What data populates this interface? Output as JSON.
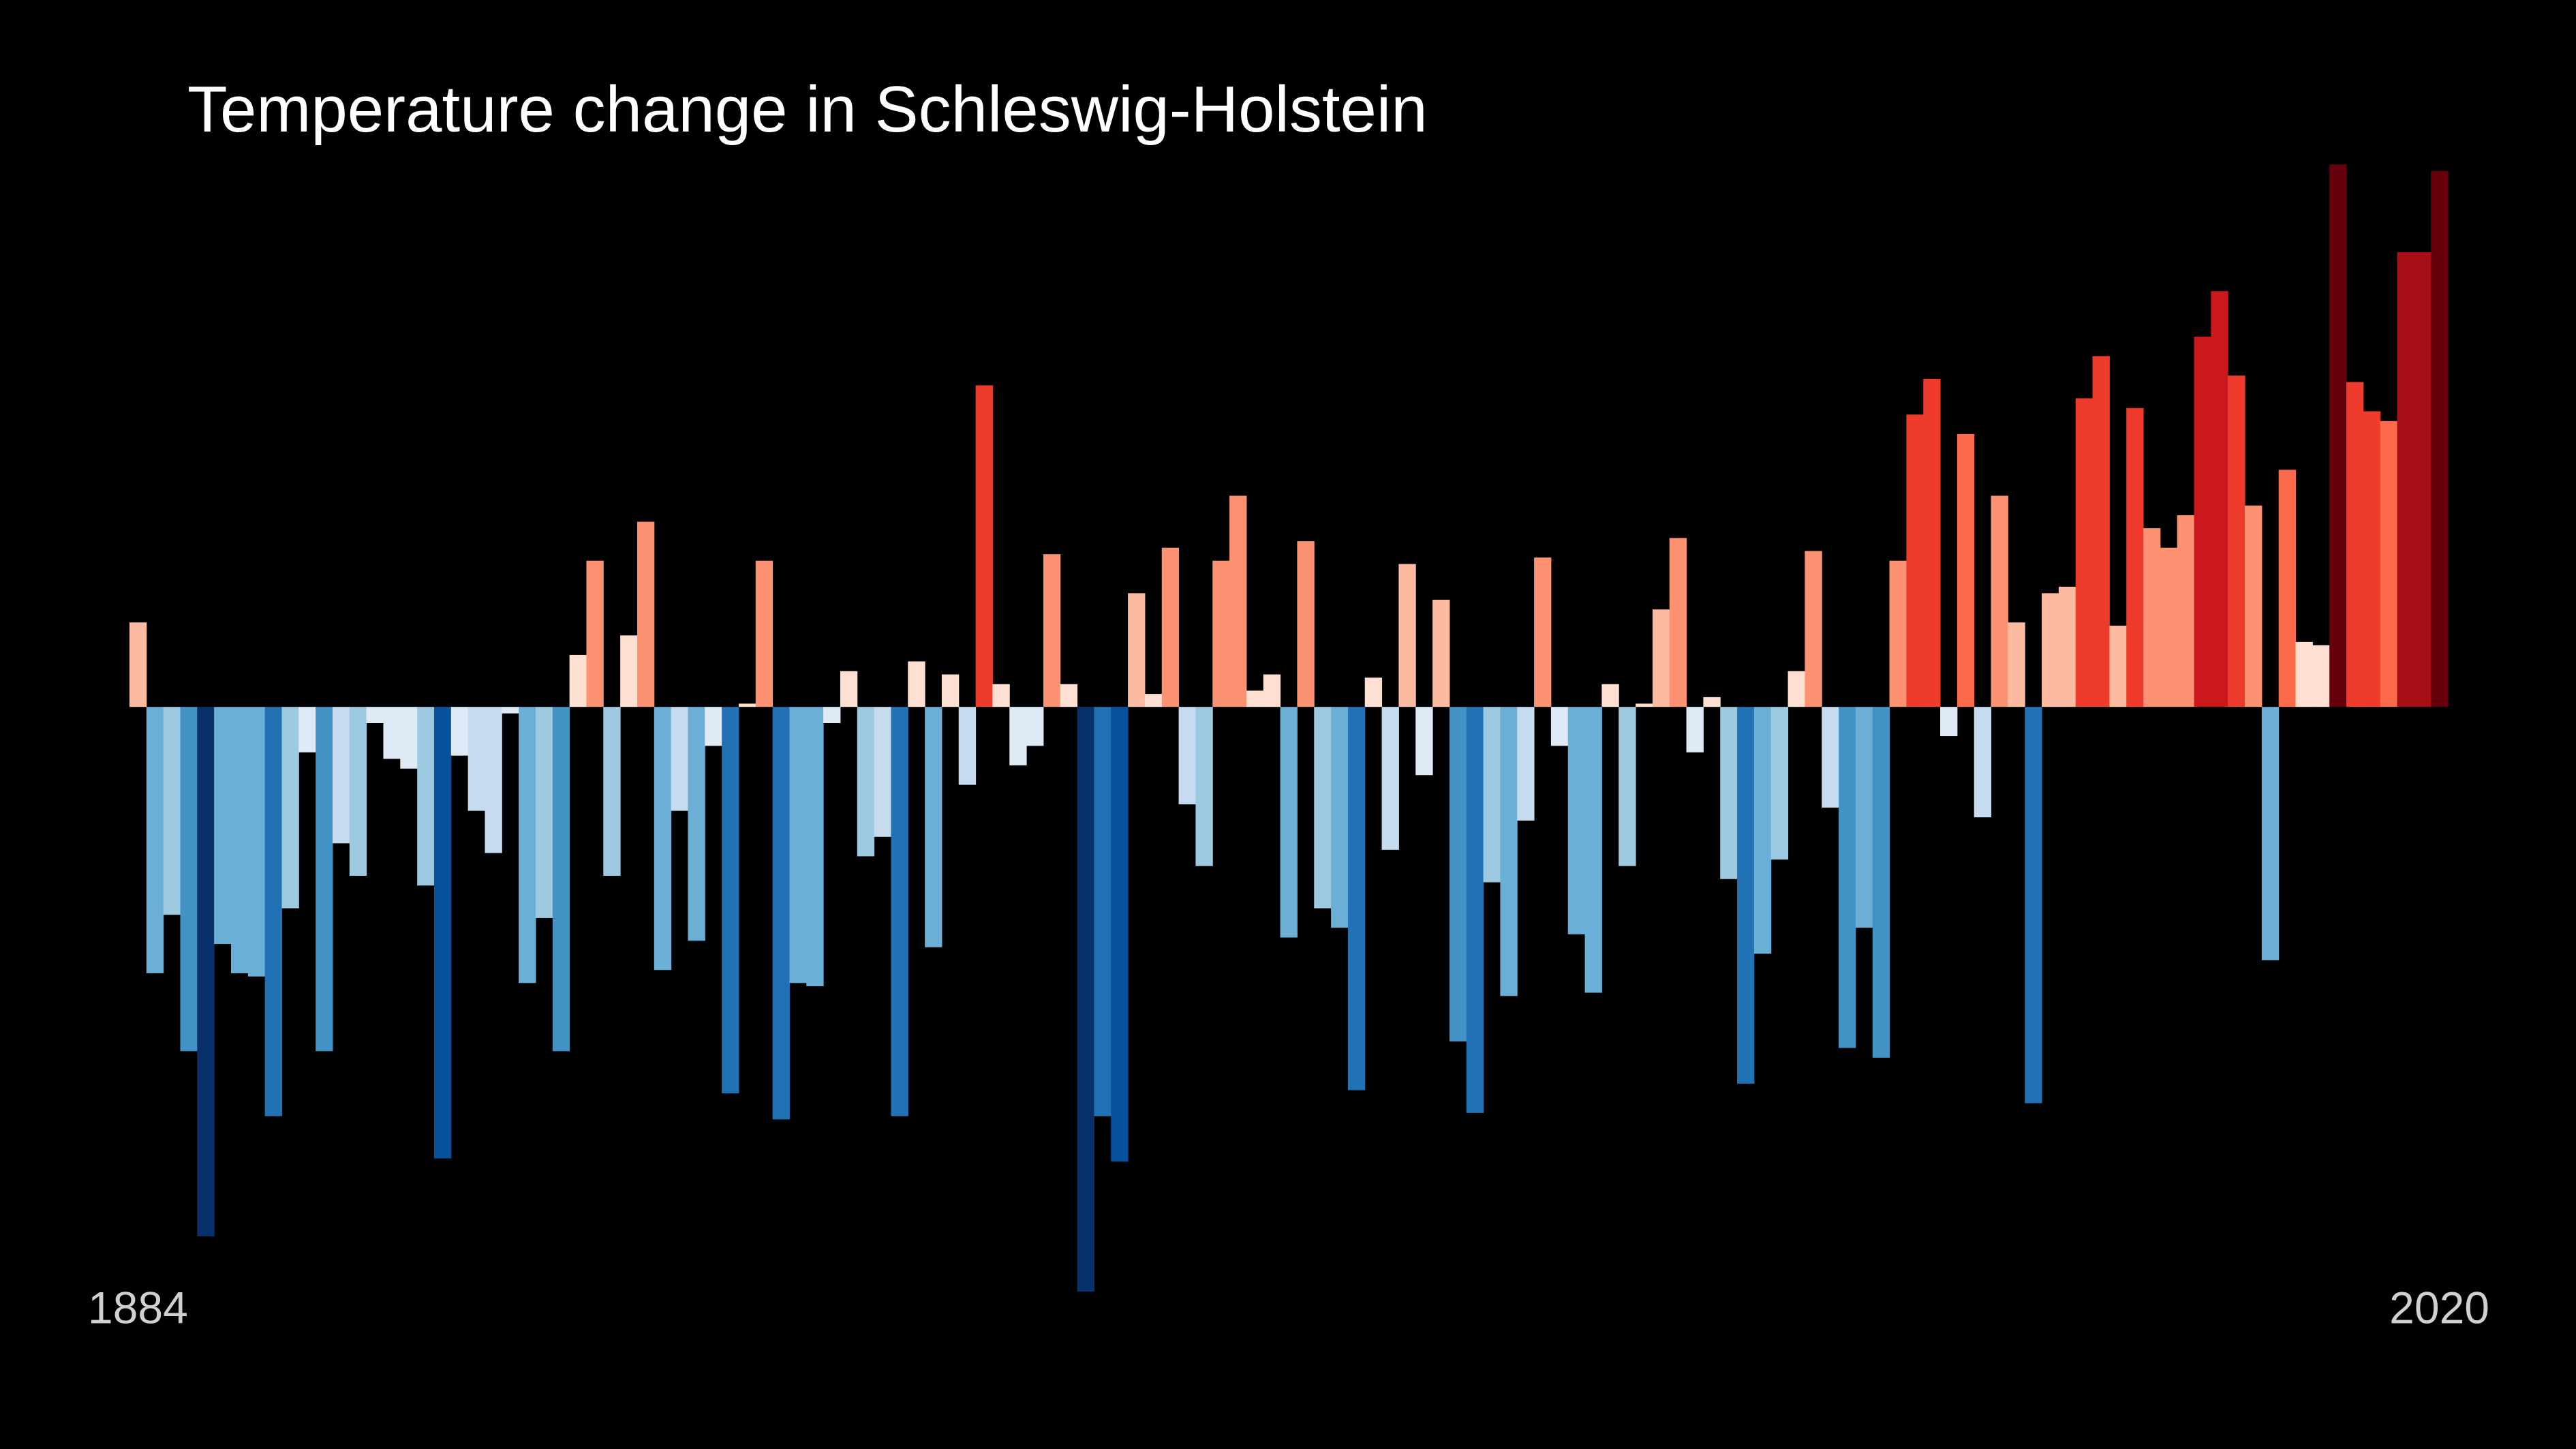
{
  "chart_data": {
    "type": "bar",
    "title": "Temperature change in Schleswig-Holstein",
    "x": [
      1884,
      1885,
      1886,
      1887,
      1888,
      1889,
      1890,
      1891,
      1892,
      1893,
      1894,
      1895,
      1896,
      1897,
      1898,
      1899,
      1900,
      1901,
      1902,
      1903,
      1904,
      1905,
      1906,
      1907,
      1908,
      1909,
      1910,
      1911,
      1912,
      1913,
      1914,
      1915,
      1916,
      1917,
      1918,
      1919,
      1920,
      1921,
      1922,
      1923,
      1924,
      1925,
      1926,
      1927,
      1928,
      1929,
      1930,
      1931,
      1932,
      1933,
      1934,
      1935,
      1936,
      1937,
      1938,
      1939,
      1940,
      1941,
      1942,
      1943,
      1944,
      1945,
      1946,
      1947,
      1948,
      1949,
      1950,
      1951,
      1952,
      1953,
      1954,
      1955,
      1956,
      1957,
      1958,
      1959,
      1960,
      1961,
      1962,
      1963,
      1964,
      1965,
      1966,
      1967,
      1968,
      1969,
      1970,
      1971,
      1972,
      1973,
      1974,
      1975,
      1976,
      1977,
      1978,
      1979,
      1980,
      1981,
      1982,
      1983,
      1984,
      1985,
      1986,
      1987,
      1988,
      1989,
      1990,
      1991,
      1992,
      1993,
      1994,
      1995,
      1996,
      1997,
      1998,
      1999,
      2000,
      2001,
      2002,
      2003,
      2004,
      2005,
      2006,
      2007,
      2008,
      2009,
      2010,
      2011,
      2012,
      2013,
      2014,
      2015,
      2016,
      2017,
      2018,
      2019,
      2020
    ],
    "values": [
      0.26,
      -0.82,
      -0.64,
      -1.06,
      -1.63,
      -0.73,
      -0.82,
      -0.83,
      -1.26,
      -0.62,
      -0.14,
      -1.06,
      -0.42,
      -0.52,
      -0.05,
      -0.16,
      -0.19,
      -0.55,
      -1.39,
      -0.15,
      -0.32,
      -0.45,
      -0.02,
      -0.85,
      -0.65,
      -1.06,
      0.16,
      0.45,
      -0.52,
      0.22,
      0.57,
      -0.81,
      -0.32,
      -0.72,
      -0.12,
      -1.19,
      0.01,
      0.45,
      -1.27,
      -0.85,
      -0.86,
      -0.05,
      0.11,
      -0.46,
      -0.4,
      -1.26,
      0.14,
      -0.74,
      0.1,
      -0.24,
      0.99,
      0.07,
      -0.18,
      -0.12,
      0.47,
      0.07,
      -1.8,
      -1.26,
      -1.4,
      0.35,
      0.04,
      0.49,
      -0.3,
      -0.49,
      0.45,
      0.65,
      0.05,
      0.1,
      -0.71,
      0.51,
      -0.62,
      -0.68,
      -1.18,
      0.09,
      -0.44,
      0.44,
      -0.21,
      0.33,
      -1.03,
      -1.25,
      -0.54,
      -0.89,
      -0.35,
      0.46,
      -0.12,
      -0.7,
      -0.88,
      0.07,
      -0.49,
      0.01,
      0.3,
      0.52,
      -0.14,
      0.03,
      -0.53,
      -1.16,
      -0.76,
      -0.47,
      0.11,
      0.48,
      -0.31,
      -1.05,
      -0.68,
      -1.08,
      0.45,
      0.9,
      1.01,
      -0.09,
      0.84,
      -0.34,
      0.65,
      0.26,
      -1.22,
      0.35,
      0.37,
      0.95,
      1.08,
      0.25,
      0.92,
      0.55,
      0.49,
      0.59,
      1.14,
      1.28,
      1.02,
      0.62,
      -0.78,
      0.73,
      0.2,
      0.19,
      1.67,
      1.0,
      0.91,
      0.88,
      1.4,
      1.4,
      1.65
    ],
    "xlim": [
      1883.5,
      2020.5
    ],
    "xticks": [
      1884,
      2020
    ],
    "ylim": [
      -1.8,
      1.7
    ],
    "colors": [
      "#08306b",
      "#08519c",
      "#2171b5",
      "#4292c6",
      "#6baed6",
      "#9ecae1",
      "#c6dbef",
      "#deebf7",
      "#fee0d2",
      "#fcbba1",
      "#fc9272",
      "#fb6a4a",
      "#ef3b2c",
      "#cb181d",
      "#a50f15",
      "#67000d"
    ],
    "clim": [
      -1.8,
      1.8
    ],
    "background": "#000000"
  }
}
